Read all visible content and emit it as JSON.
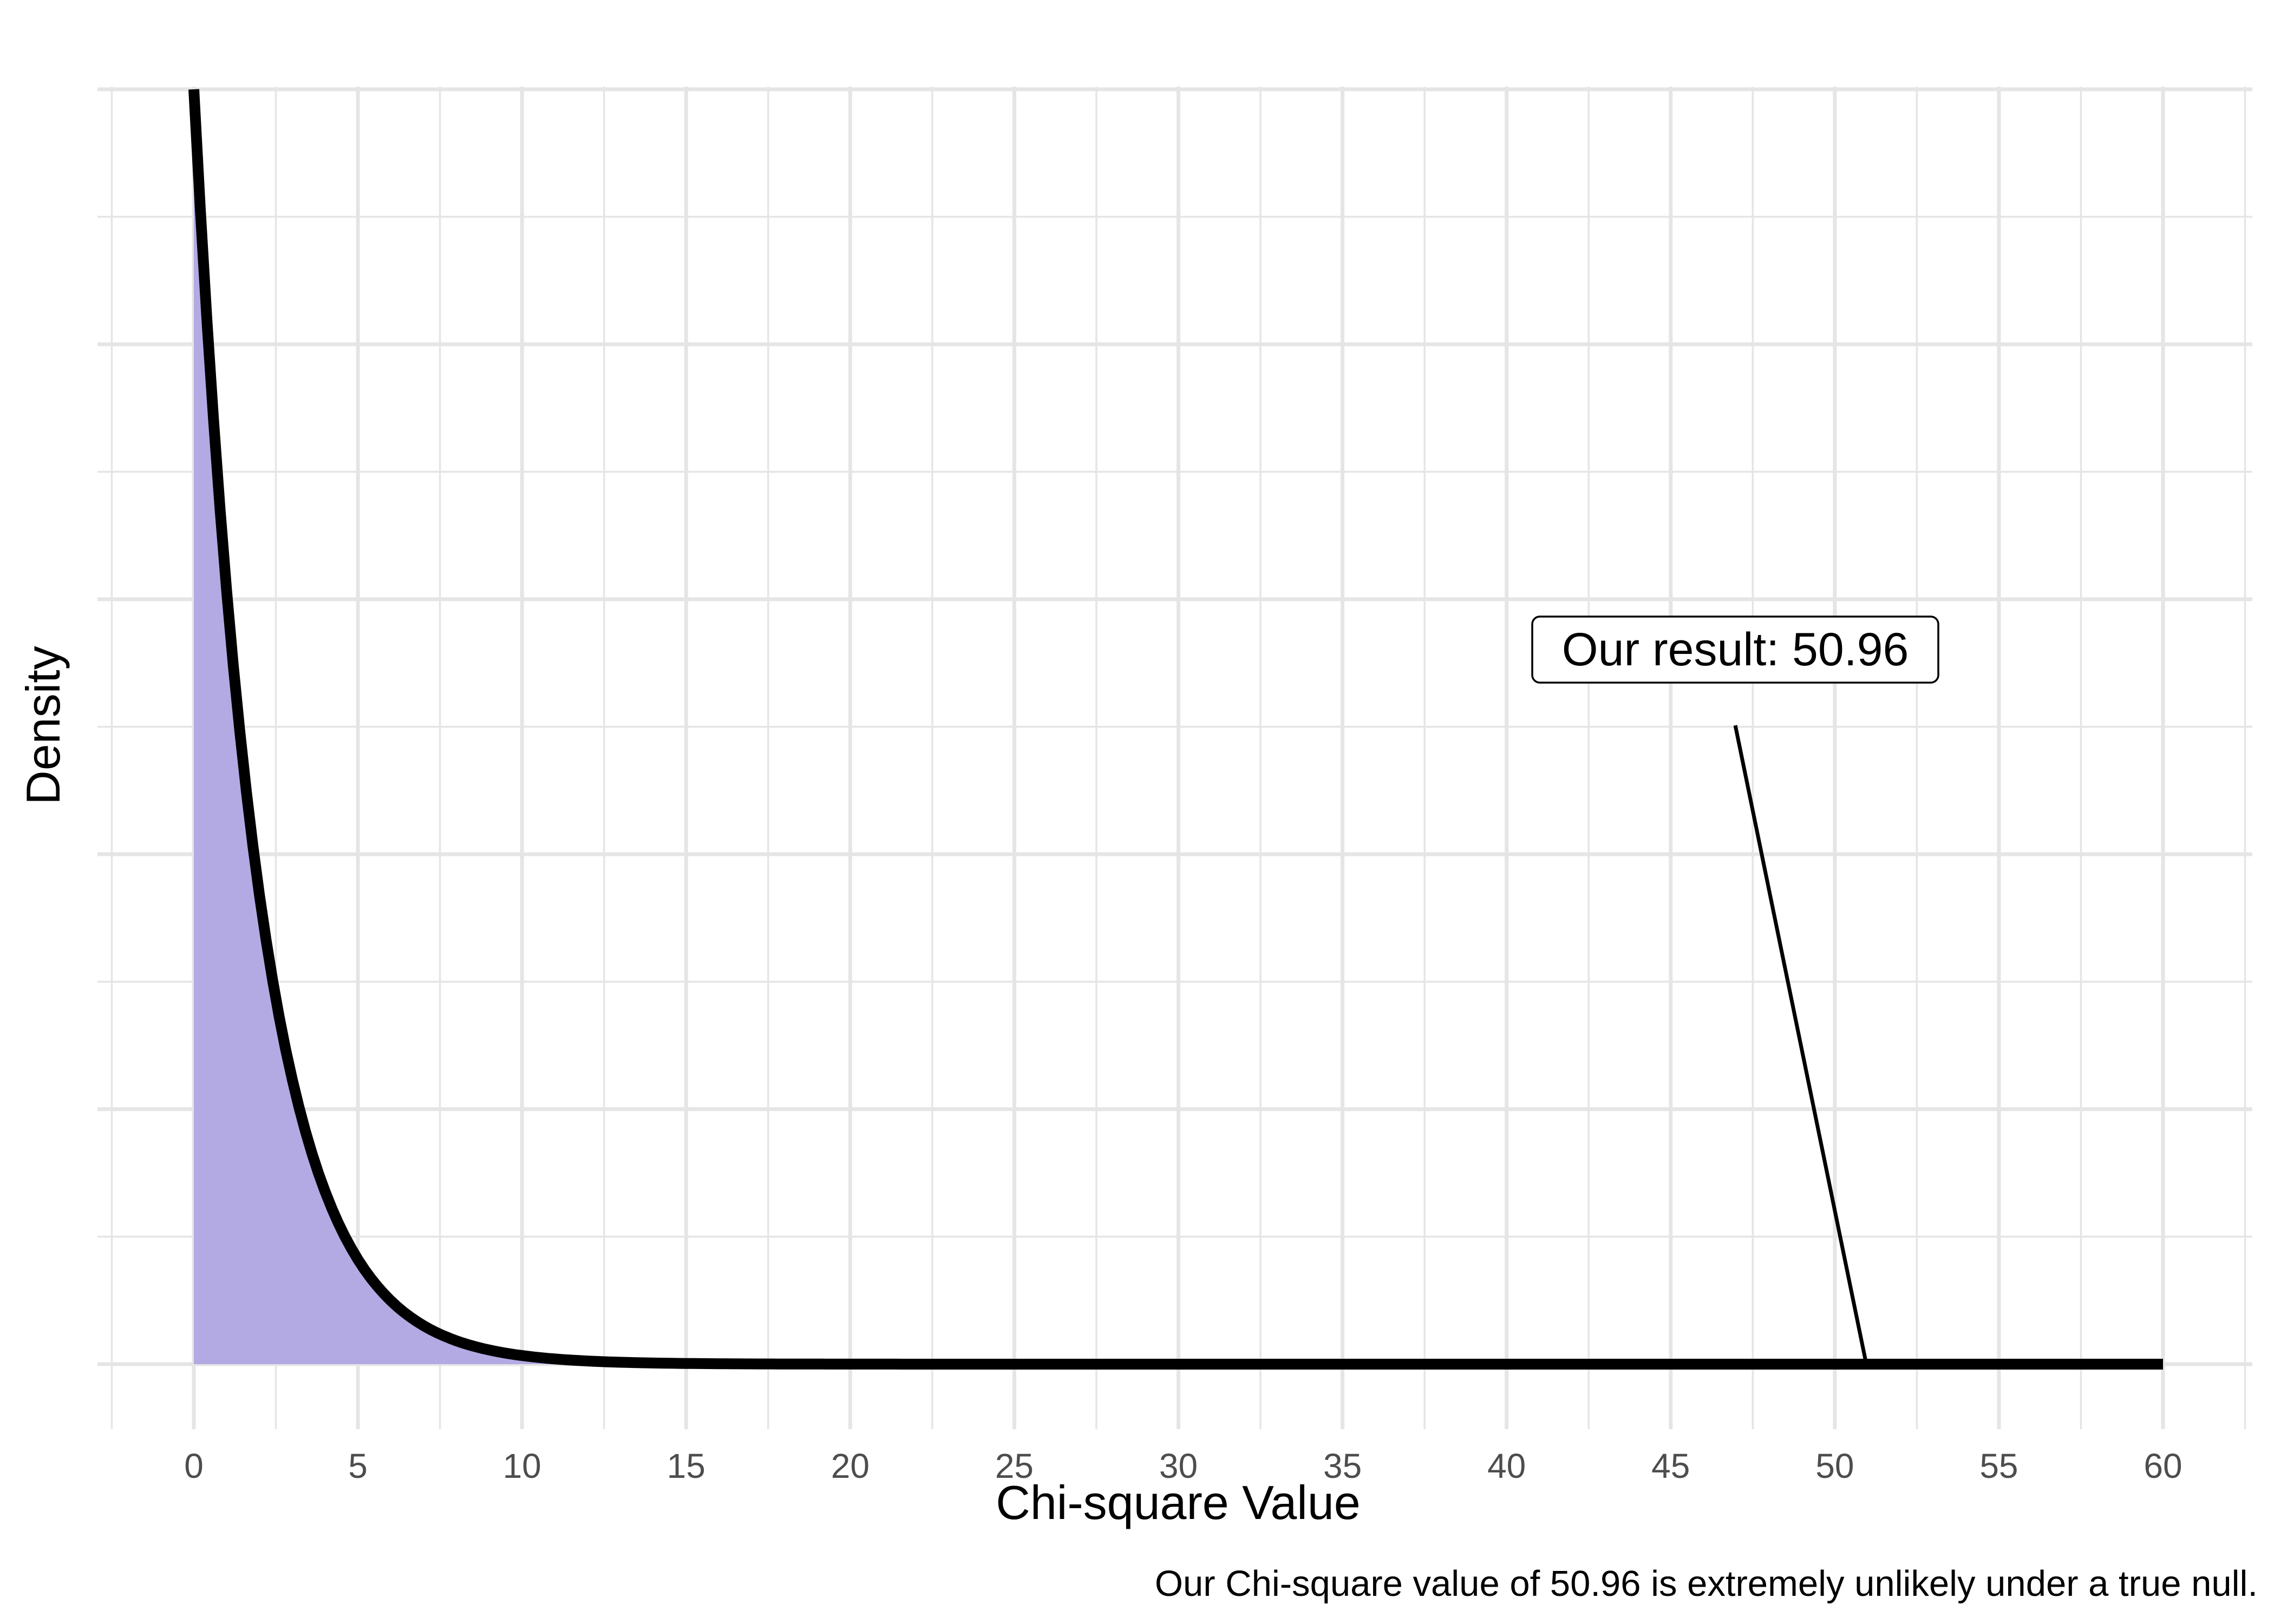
{
  "chart_data": {
    "type": "area",
    "title": "",
    "xlabel": "Chi-square Value",
    "ylabel": "Density",
    "caption": "Our Chi-square value of 50.96 is extremely unlikely under a true null.",
    "xlim": [
      0,
      60
    ],
    "x_ticks": [
      0,
      5,
      10,
      15,
      20,
      25,
      30,
      35,
      40,
      45,
      50,
      55,
      60
    ],
    "y_tick_labels_shown": false,
    "grid": true,
    "distribution": "chi-square",
    "degrees_of_freedom": 2,
    "series": [
      {
        "x": [
          0,
          1,
          2,
          3,
          4,
          5,
          6,
          7,
          8,
          9,
          10,
          12,
          14,
          16,
          20,
          25,
          30,
          40,
          50,
          60
        ],
        "y": [
          0.5,
          0.3033,
          0.1839,
          0.1116,
          0.0677,
          0.041,
          0.0249,
          0.0151,
          0.0092,
          0.0056,
          0.0034,
          0.0012,
          0.0005,
          0.0002,
          0.0,
          0.0,
          0.0,
          0.0,
          0.0,
          0.0
        ]
      }
    ],
    "annotation": {
      "label": "Our result: 50.96",
      "x": 50.96
    },
    "colors": {
      "fill": "#b3aae3",
      "curve": "#000000",
      "grid": "#e5e5e5"
    }
  }
}
